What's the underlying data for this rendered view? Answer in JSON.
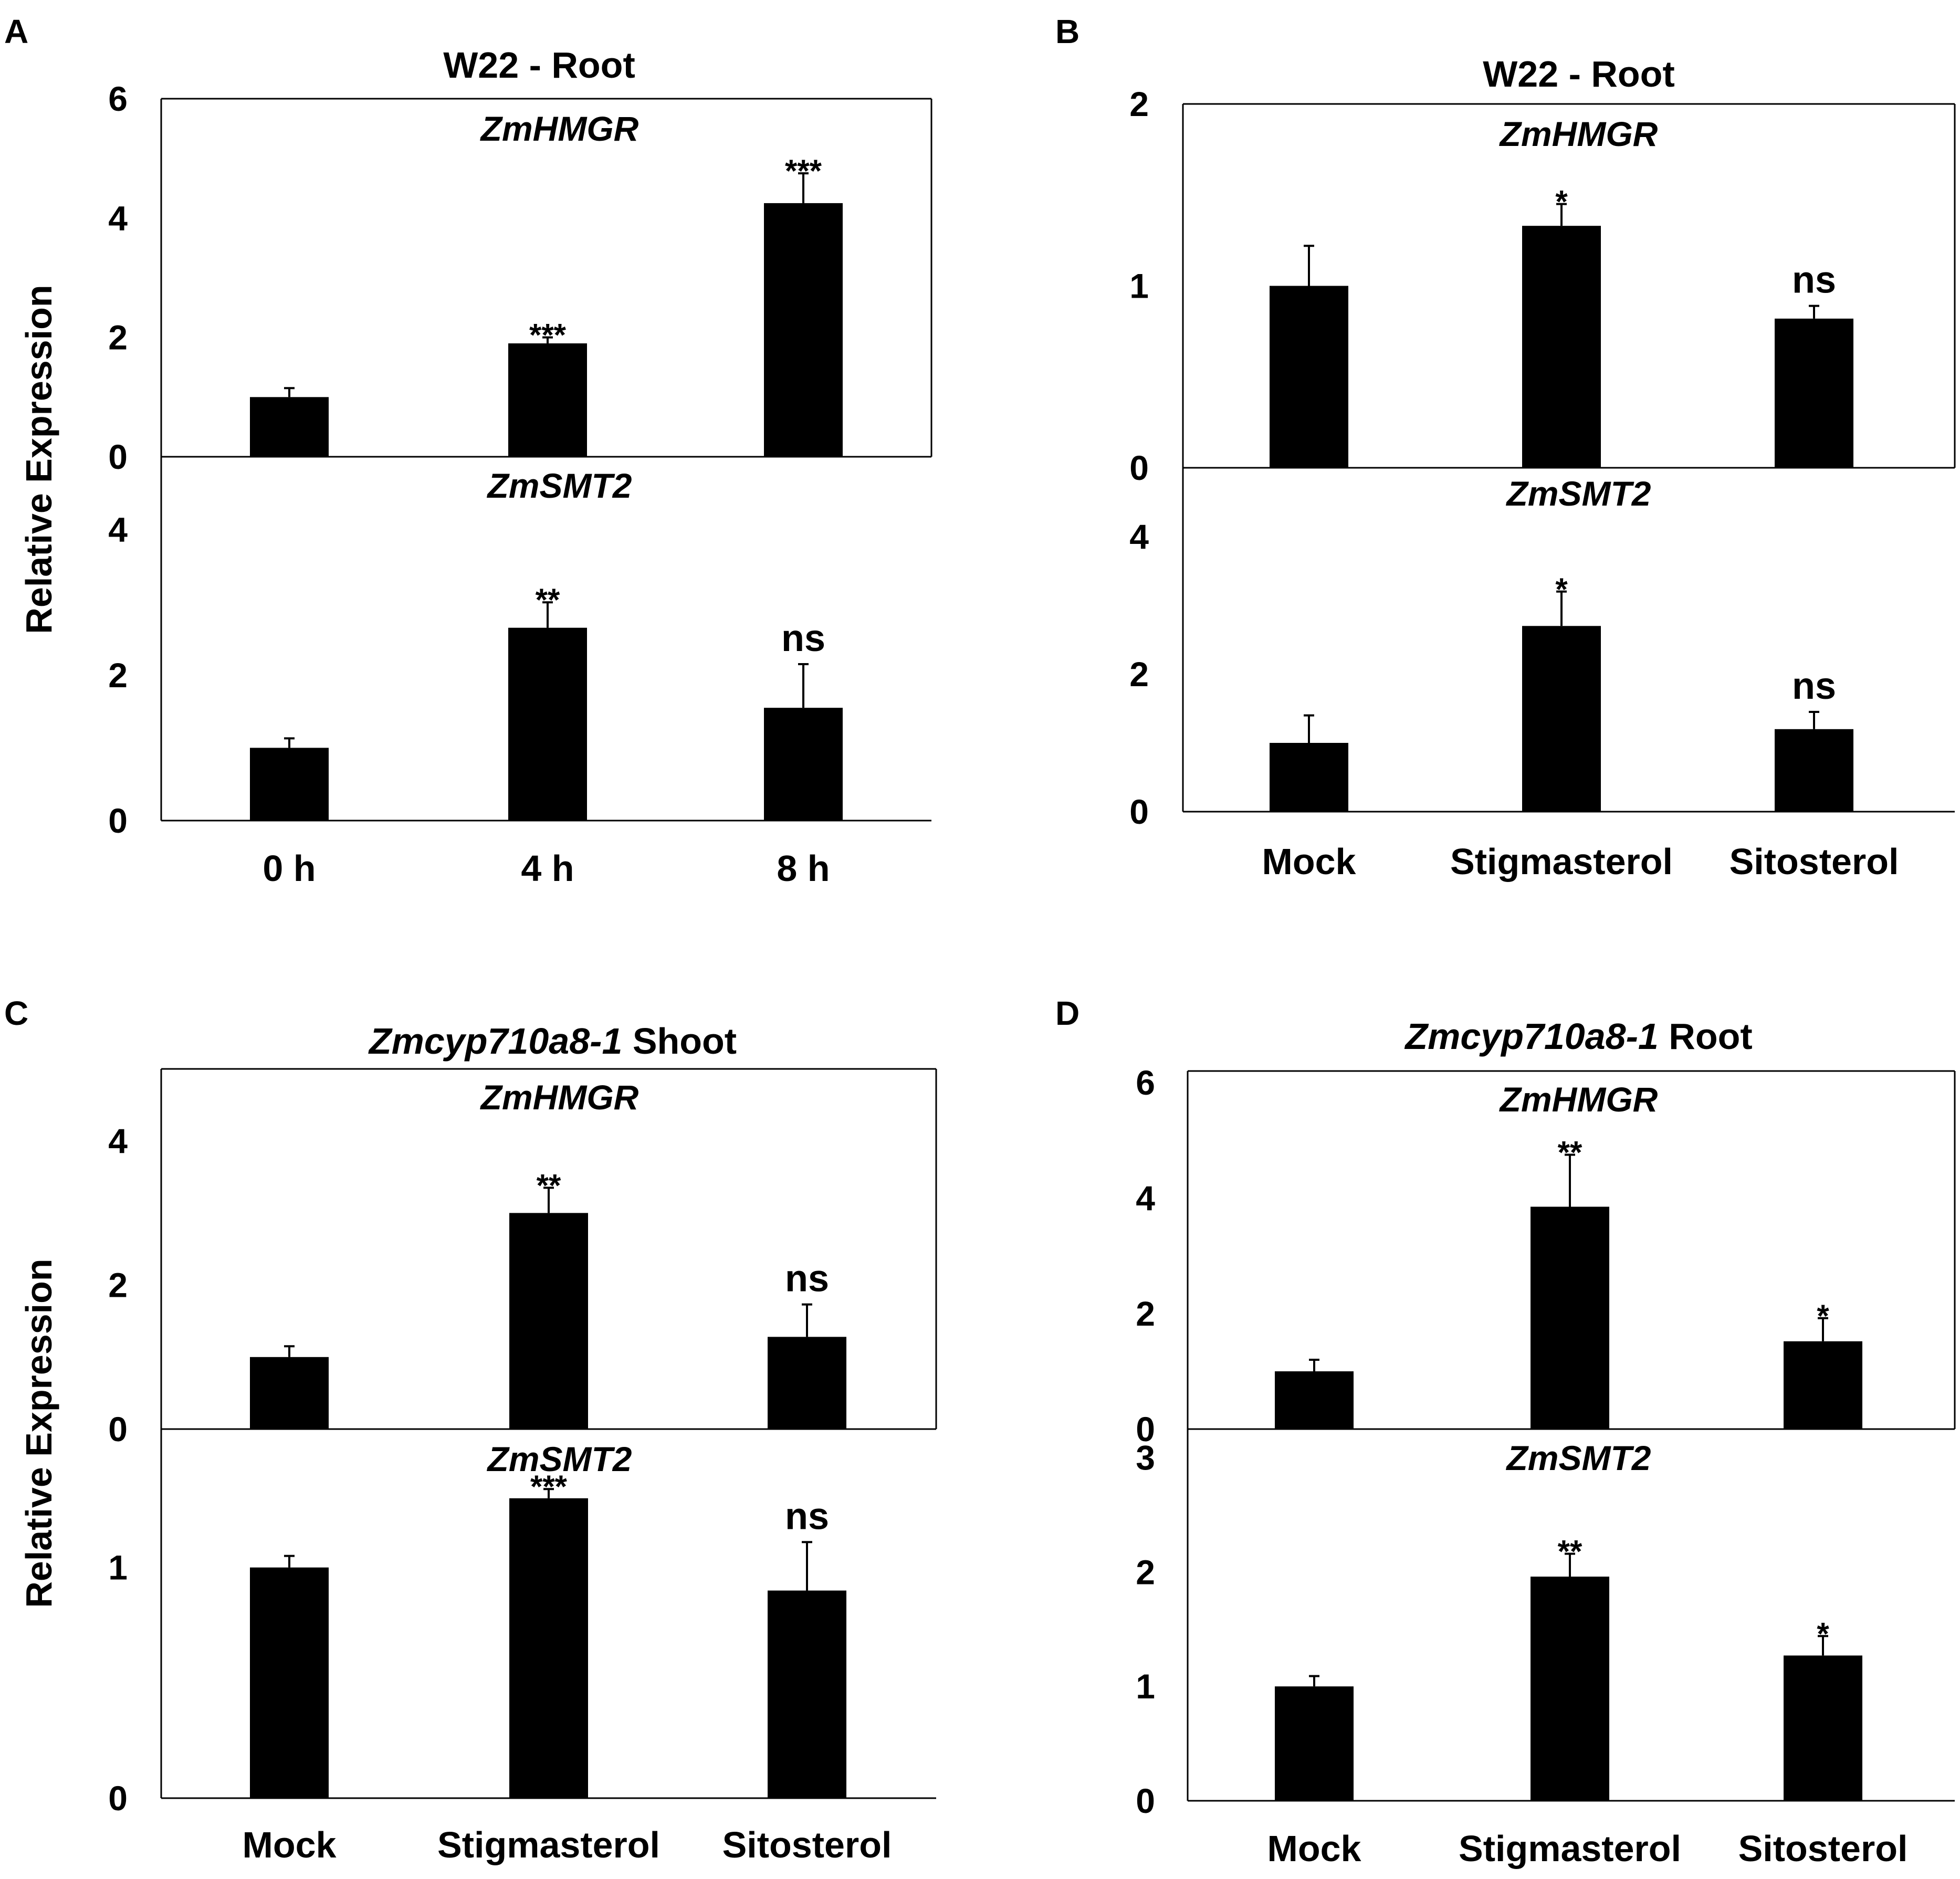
{
  "chart_data": [
    {
      "id": "A",
      "type": "bar",
      "panel_letter": "A",
      "title": "W22 - Root",
      "title_parts": [
        {
          "text": "W22 - Root",
          "italic": false
        }
      ],
      "ylabel": "Relative Expression",
      "categories": [
        "0 h",
        "4 h",
        "8 h"
      ],
      "subplots": [
        {
          "gene": "ZmHMGR",
          "ylim": [
            0,
            6
          ],
          "yticks": [
            "0",
            "2",
            "4",
            "6"
          ],
          "values": [
            1.0,
            1.9,
            4.25
          ],
          "errors": [
            0.15,
            0.1,
            0.5
          ],
          "significance": [
            "",
            "***",
            "***"
          ]
        },
        {
          "gene": "ZmSMT2",
          "ylim": [
            0,
            5
          ],
          "yticks": [
            "0",
            "2",
            "4"
          ],
          "values": [
            1.0,
            2.65,
            1.55
          ],
          "errors": [
            0.13,
            0.35,
            0.6
          ],
          "significance": [
            "",
            "**",
            "ns"
          ]
        }
      ]
    },
    {
      "id": "B",
      "type": "bar",
      "panel_letter": "B",
      "title": "W22 - Root",
      "title_parts": [
        {
          "text": "W22 - Root",
          "italic": false
        }
      ],
      "ylabel": "",
      "categories": [
        "Mock",
        "Stigmasterol",
        "Sitosterol"
      ],
      "subplots": [
        {
          "gene": "ZmHMGR",
          "ylim": [
            0,
            2
          ],
          "yticks": [
            "0",
            "1",
            "2"
          ],
          "values": [
            1.0,
            1.33,
            0.82
          ],
          "errors": [
            0.22,
            0.12,
            0.07
          ],
          "significance": [
            "",
            "*",
            "ns"
          ]
        },
        {
          "gene": "ZmSMT2",
          "ylim": [
            0,
            5
          ],
          "yticks": [
            "0",
            "2",
            "4"
          ],
          "values": [
            1.0,
            2.7,
            1.2
          ],
          "errors": [
            0.4,
            0.5,
            0.25
          ],
          "significance": [
            "",
            "*",
            "ns"
          ]
        }
      ]
    },
    {
      "id": "C",
      "type": "bar",
      "panel_letter": "C",
      "title": "Zmcyp710a8-1 Shoot",
      "title_parts": [
        {
          "text": "Zmcyp710a8-1",
          "italic": true
        },
        {
          "text": " Shoot",
          "italic": false
        }
      ],
      "ylabel": "Relative Expression",
      "categories": [
        "Mock",
        "Stigmasterol",
        "Sitosterol"
      ],
      "subplots": [
        {
          "gene": "ZmHMGR",
          "ylim": [
            0,
            5
          ],
          "yticks": [
            "0",
            "2",
            "4"
          ],
          "values": [
            1.0,
            3.0,
            1.28
          ],
          "errors": [
            0.15,
            0.35,
            0.45
          ],
          "significance": [
            "",
            "**",
            "ns"
          ]
        },
        {
          "gene": "ZmSMT2",
          "ylim": [
            0,
            1.6
          ],
          "yticks": [
            "0",
            "1"
          ],
          "values": [
            1.0,
            1.3,
            0.9
          ],
          "errors": [
            0.05,
            0.04,
            0.21
          ],
          "significance": [
            "",
            "***",
            "ns"
          ]
        }
      ]
    },
    {
      "id": "D",
      "type": "bar",
      "panel_letter": "D",
      "title": "Zmcyp710a8-1 Root",
      "title_parts": [
        {
          "text": "Zmcyp710a8-1",
          "italic": true
        },
        {
          "text": " Root",
          "italic": false
        }
      ],
      "ylabel": "",
      "categories": [
        "Mock",
        "Stigmasterol",
        "Sitosterol"
      ],
      "subplots": [
        {
          "gene": "ZmHMGR",
          "ylim": [
            0,
            6.2
          ],
          "yticks": [
            "0",
            "2",
            "4",
            "6"
          ],
          "values": [
            1.0,
            3.85,
            1.52
          ],
          "errors": [
            0.2,
            0.9,
            0.4
          ],
          "significance": [
            "",
            "**",
            "*"
          ]
        },
        {
          "gene": "ZmSMT2",
          "ylim": [
            0,
            3.25
          ],
          "yticks": [
            "0",
            "1",
            "2",
            "3"
          ],
          "values": [
            1.0,
            1.96,
            1.27
          ],
          "errors": [
            0.09,
            0.2,
            0.17
          ],
          "significance": [
            "",
            "**",
            "*"
          ]
        }
      ]
    }
  ]
}
